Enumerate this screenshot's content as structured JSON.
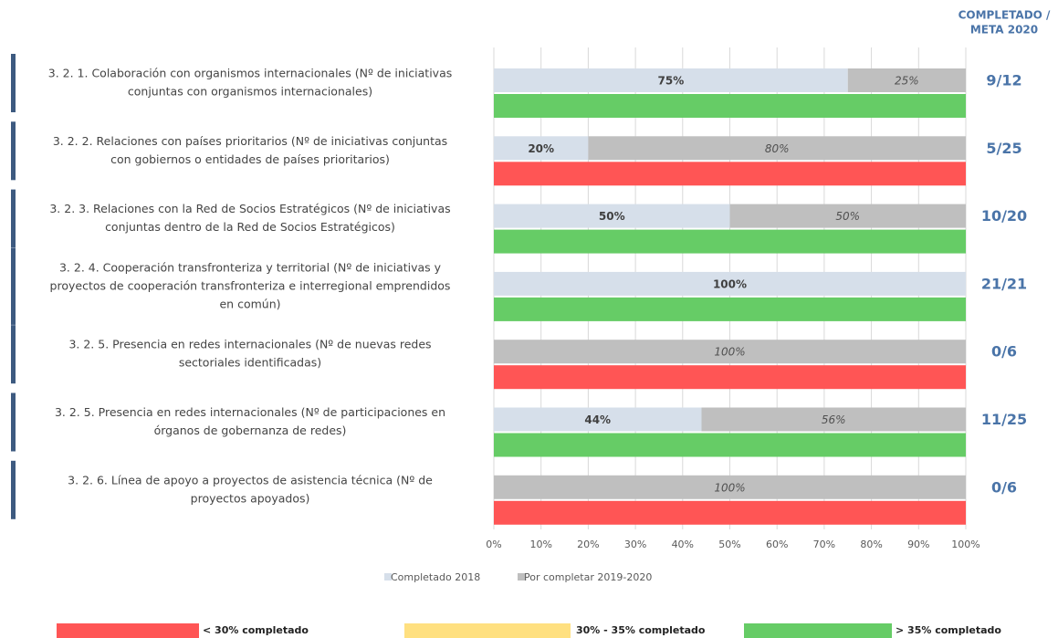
{
  "chart_data": {
    "type": "stacked-bar-horizontal",
    "right_header": [
      "COMPLETADO /",
      "META 2020"
    ],
    "categories": [
      [
        "3. 2. 1. Colaboración con organismos internacionales (Nº de iniciativas",
        "conjuntas con organismos internacionales)"
      ],
      [
        "3. 2. 2. Relaciones con países prioritarios (Nº de iniciativas conjuntas",
        "con gobiernos o entidades de países prioritarios)"
      ],
      [
        "3. 2. 3. Relaciones con la Red de Socios Estratégicos (Nº de iniciativas",
        "conjuntas dentro de la Red de Socios Estratégicos)"
      ],
      [
        "3. 2. 4. Cooperación transfronteriza y territorial (Nº de iniciativas y",
        "proyectos de cooperación transfronteriza e interregional emprendidos",
        "en común)"
      ],
      [
        "3. 2. 5. Presencia en redes internacionales (Nº de nuevas redes",
        "sectoriales identificadas)"
      ],
      [
        "3. 2. 5. Presencia en redes internacionales (Nº de participaciones en",
        "órganos de gobernanza de redes)"
      ],
      [
        "3. 2. 6. Línea de apoyo a proyectos de asistencia técnica (Nº de",
        "proyectos apoyados)"
      ]
    ],
    "series": [
      {
        "name": "Completado 2018",
        "color": "#d6dfea",
        "values": [
          75,
          20,
          50,
          100,
          0,
          44,
          0
        ],
        "value_labels": [
          "75%",
          "20%",
          "50%",
          "100%",
          null,
          "44%",
          null
        ]
      },
      {
        "name": "Por completar 2019-2020",
        "color": "#bfbfbf",
        "values": [
          25,
          80,
          50,
          0,
          100,
          56,
          100
        ],
        "value_labels": [
          "25%",
          "80%",
          "50%",
          null,
          "100%",
          "56%",
          "100%"
        ]
      }
    ],
    "ratios": [
      "9/12",
      "5/25",
      "10/20",
      "21/21",
      "0/6",
      "11/25",
      "0/6"
    ],
    "status_colors": [
      "#66cc66",
      "#ff5555",
      "#66cc66",
      "#66cc66",
      "#ff5555",
      "#66cc66",
      "#ff5555"
    ],
    "status_legend": [
      {
        "label": "< 30% completado",
        "color": "#ff5555"
      },
      {
        "label": "30% - 35% completado",
        "color": "#ffe080"
      },
      {
        "label": "> 35% completado",
        "color": "#66cc66"
      }
    ],
    "xlim": [
      0,
      100
    ],
    "xticks": [
      {
        "value": 0,
        "label": "0%"
      },
      {
        "value": 10,
        "label": "10%"
      },
      {
        "value": 20,
        "label": "20%"
      },
      {
        "value": 30,
        "label": "30%"
      },
      {
        "value": 40,
        "label": "40%"
      },
      {
        "value": 50,
        "label": "50%"
      },
      {
        "value": 60,
        "label": "60%"
      },
      {
        "value": 70,
        "label": "70%"
      },
      {
        "value": 80,
        "label": "80%"
      },
      {
        "value": 90,
        "label": "90%"
      },
      {
        "value": 100,
        "label": "100%"
      }
    ],
    "grid": true
  }
}
